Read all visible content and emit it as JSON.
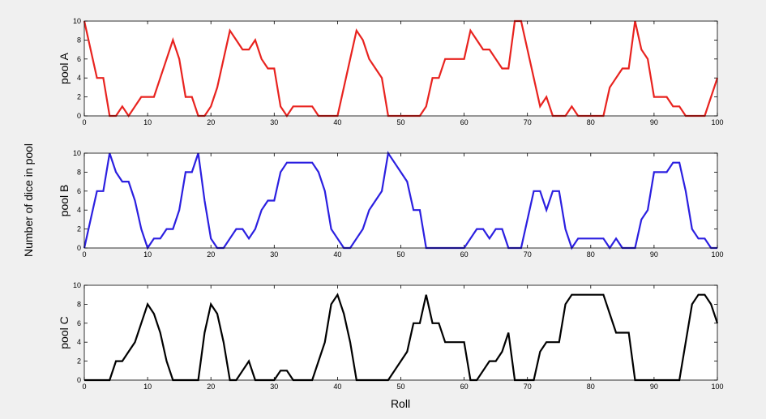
{
  "figure": {
    "ylabel": "Number of dice in pool",
    "xlabel": "Roll"
  },
  "chart_data": [
    {
      "type": "line",
      "ylabel": "pool A",
      "color": "#e8231f",
      "xlim": [
        0,
        100
      ],
      "ylim": [
        0,
        10
      ],
      "xticks": [
        0,
        10,
        20,
        30,
        40,
        50,
        60,
        70,
        80,
        90,
        100
      ],
      "yticks": [
        0,
        2,
        4,
        6,
        8,
        10
      ],
      "x": [
        0,
        1,
        2,
        3,
        4,
        5,
        6,
        7,
        8,
        9,
        10,
        11,
        12,
        13,
        14,
        15,
        16,
        17,
        18,
        19,
        20,
        21,
        22,
        23,
        24,
        25,
        26,
        27,
        28,
        29,
        30,
        31,
        32,
        33,
        34,
        35,
        36,
        37,
        38,
        39,
        40,
        41,
        42,
        43,
        44,
        45,
        46,
        47,
        48,
        49,
        50,
        51,
        52,
        53,
        54,
        55,
        56,
        57,
        58,
        59,
        60,
        61,
        62,
        63,
        64,
        65,
        66,
        67,
        68,
        69,
        70,
        71,
        72,
        73,
        74,
        75,
        76,
        77,
        78,
        79,
        80,
        81,
        82,
        83,
        84,
        85,
        86,
        87,
        88,
        89,
        90,
        91,
        92,
        93,
        94,
        95,
        96,
        97,
        98,
        99,
        100
      ],
      "y": [
        10,
        7,
        4,
        4,
        0,
        0,
        1,
        0,
        1,
        2,
        2,
        2,
        4,
        6,
        8,
        6,
        2,
        2,
        0,
        0,
        1,
        3,
        6,
        9,
        8,
        7,
        7,
        8,
        6,
        5,
        5,
        1,
        0,
        1,
        1,
        1,
        1,
        0,
        0,
        0,
        0,
        3,
        6,
        9,
        8,
        6,
        5,
        4,
        0,
        0,
        0,
        0,
        0,
        0,
        1,
        4,
        4,
        6,
        6,
        6,
        6,
        9,
        8,
        7,
        7,
        6,
        5,
        5,
        10,
        10,
        7,
        4,
        1,
        2,
        0,
        0,
        0,
        1,
        0,
        0,
        0,
        0,
        0,
        3,
        4,
        5,
        5,
        10,
        7,
        6,
        2,
        2,
        2,
        1,
        1,
        0,
        0,
        0,
        0,
        2,
        4
      ]
    },
    {
      "type": "line",
      "ylabel": "pool B",
      "color": "#2b1fe0",
      "xlim": [
        0,
        100
      ],
      "ylim": [
        0,
        10
      ],
      "xticks": [
        0,
        10,
        20,
        30,
        40,
        50,
        60,
        70,
        80,
        90,
        100
      ],
      "yticks": [
        0,
        2,
        4,
        6,
        8,
        10
      ],
      "x": [
        0,
        1,
        2,
        3,
        4,
        5,
        6,
        7,
        8,
        9,
        10,
        11,
        12,
        13,
        14,
        15,
        16,
        17,
        18,
        19,
        20,
        21,
        22,
        23,
        24,
        25,
        26,
        27,
        28,
        29,
        30,
        31,
        32,
        33,
        34,
        35,
        36,
        37,
        38,
        39,
        40,
        41,
        42,
        43,
        44,
        45,
        46,
        47,
        48,
        49,
        50,
        51,
        52,
        53,
        54,
        55,
        56,
        57,
        58,
        59,
        60,
        61,
        62,
        63,
        64,
        65,
        66,
        67,
        68,
        69,
        70,
        71,
        72,
        73,
        74,
        75,
        76,
        77,
        78,
        79,
        80,
        81,
        82,
        83,
        84,
        85,
        86,
        87,
        88,
        89,
        90,
        91,
        92,
        93,
        94,
        95,
        96,
        97,
        98,
        99,
        100
      ],
      "y": [
        0,
        3,
        6,
        6,
        10,
        8,
        7,
        7,
        5,
        2,
        0,
        1,
        1,
        2,
        2,
        4,
        8,
        8,
        10,
        5,
        1,
        0,
        0,
        1,
        2,
        2,
        1,
        2,
        4,
        5,
        5,
        8,
        9,
        9,
        9,
        9,
        9,
        8,
        6,
        2,
        1,
        0,
        0,
        1,
        2,
        4,
        5,
        6,
        10,
        9,
        8,
        7,
        4,
        4,
        0,
        0,
        0,
        0,
        0,
        0,
        0,
        1,
        2,
        2,
        1,
        2,
        2,
        0,
        0,
        0,
        3,
        6,
        6,
        4,
        6,
        6,
        2,
        0,
        1,
        1,
        1,
        1,
        1,
        0,
        1,
        0,
        0,
        0,
        3,
        4,
        8,
        8,
        8,
        9,
        9,
        6,
        2,
        1,
        1,
        0,
        0
      ]
    },
    {
      "type": "line",
      "ylabel": "pool C",
      "color": "#000000",
      "xlim": [
        0,
        100
      ],
      "ylim": [
        0,
        10
      ],
      "xticks": [
        0,
        10,
        20,
        30,
        40,
        50,
        60,
        70,
        80,
        90,
        100
      ],
      "yticks": [
        0,
        2,
        4,
        6,
        8,
        10
      ],
      "x": [
        0,
        1,
        2,
        3,
        4,
        5,
        6,
        7,
        8,
        9,
        10,
        11,
        12,
        13,
        14,
        15,
        16,
        17,
        18,
        19,
        20,
        21,
        22,
        23,
        24,
        25,
        26,
        27,
        28,
        29,
        30,
        31,
        32,
        33,
        34,
        35,
        36,
        37,
        38,
        39,
        40,
        41,
        42,
        43,
        44,
        45,
        46,
        47,
        48,
        49,
        50,
        51,
        52,
        53,
        54,
        55,
        56,
        57,
        58,
        59,
        60,
        61,
        62,
        63,
        64,
        65,
        66,
        67,
        68,
        69,
        70,
        71,
        72,
        73,
        74,
        75,
        76,
        77,
        78,
        79,
        80,
        81,
        82,
        83,
        84,
        85,
        86,
        87,
        88,
        89,
        90,
        91,
        92,
        93,
        94,
        95,
        96,
        97,
        98,
        99,
        100
      ],
      "y": [
        0,
        0,
        0,
        0,
        0,
        2,
        2,
        3,
        4,
        6,
        8,
        7,
        5,
        2,
        0,
        0,
        0,
        0,
        0,
        5,
        8,
        7,
        4,
        0,
        0,
        1,
        2,
        0,
        0,
        0,
        0,
        1,
        1,
        0,
        0,
        0,
        0,
        2,
        4,
        8,
        9,
        7,
        4,
        0,
        0,
        0,
        0,
        0,
        0,
        1,
        2,
        3,
        6,
        6,
        9,
        6,
        6,
        4,
        4,
        4,
        4,
        0,
        0,
        1,
        2,
        2,
        3,
        5,
        0,
        0,
        0,
        0,
        3,
        4,
        4,
        4,
        8,
        9,
        9,
        9,
        9,
        9,
        9,
        7,
        5,
        5,
        5,
        0,
        0,
        0,
        0,
        0,
        0,
        0,
        0,
        4,
        8,
        9,
        9,
        8,
        6
      ]
    }
  ]
}
